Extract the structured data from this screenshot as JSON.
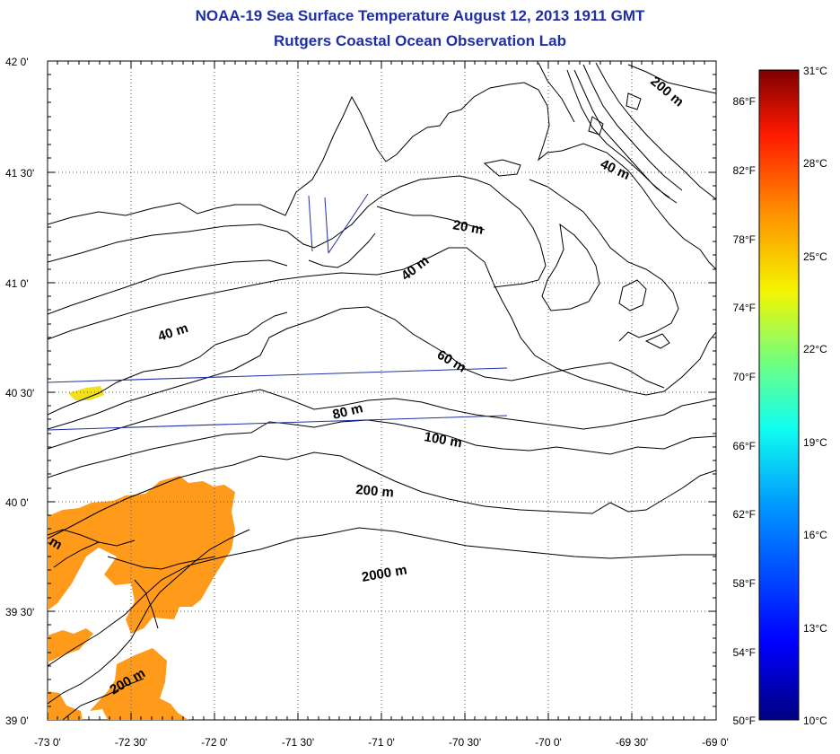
{
  "title": "NOAA-19 Sea Surface Temperature August 12, 2013 1911 GMT",
  "subtitle": "Rutgers Coastal Ocean Observation Lab",
  "axes": {
    "lat_labels": [
      "42 0'",
      "41 30'",
      "41 0'",
      "40 30'",
      "40 0'",
      "39 30'",
      "39 0'"
    ],
    "lon_labels": [
      "-73 0'",
      "-72 30'",
      "-72 0'",
      "-71 30'",
      "-71 0'",
      "-70 30'",
      "-70 0'",
      "-69 30'",
      "-69 0'"
    ],
    "lat_range": [
      39.0,
      42.0
    ],
    "lon_range": [
      -73.0,
      -69.0
    ]
  },
  "fahrenheit_labels": [
    "86°F",
    "82°F",
    "78°F",
    "74°F",
    "70°F",
    "66°F",
    "62°F",
    "58°F",
    "54°F",
    "50°F"
  ],
  "colorbar": {
    "labels": [
      "31°C",
      "28°C",
      "25°C",
      "22°C",
      "19°C",
      "16°C",
      "13°C",
      "10°C"
    ],
    "range_c": [
      10,
      31
    ]
  },
  "contour_labels": {
    "c200_ne": "200 m",
    "c40_ne": "40 m",
    "c20": "20 m",
    "c40_mid": "40 m",
    "c40_w": "40 m",
    "c60": "60 m",
    "c80": "80 m",
    "c100": "100 m",
    "c200_mid": "200 m",
    "c2000": "2000 m",
    "c200_sw": "200 m",
    "cm_edge": "m"
  },
  "colors": {
    "title": "#1f2fa3",
    "sst_warm": "#ff9a1a",
    "sst_yellow": "#f2e01e",
    "track_line": "#1f2fa3"
  }
}
